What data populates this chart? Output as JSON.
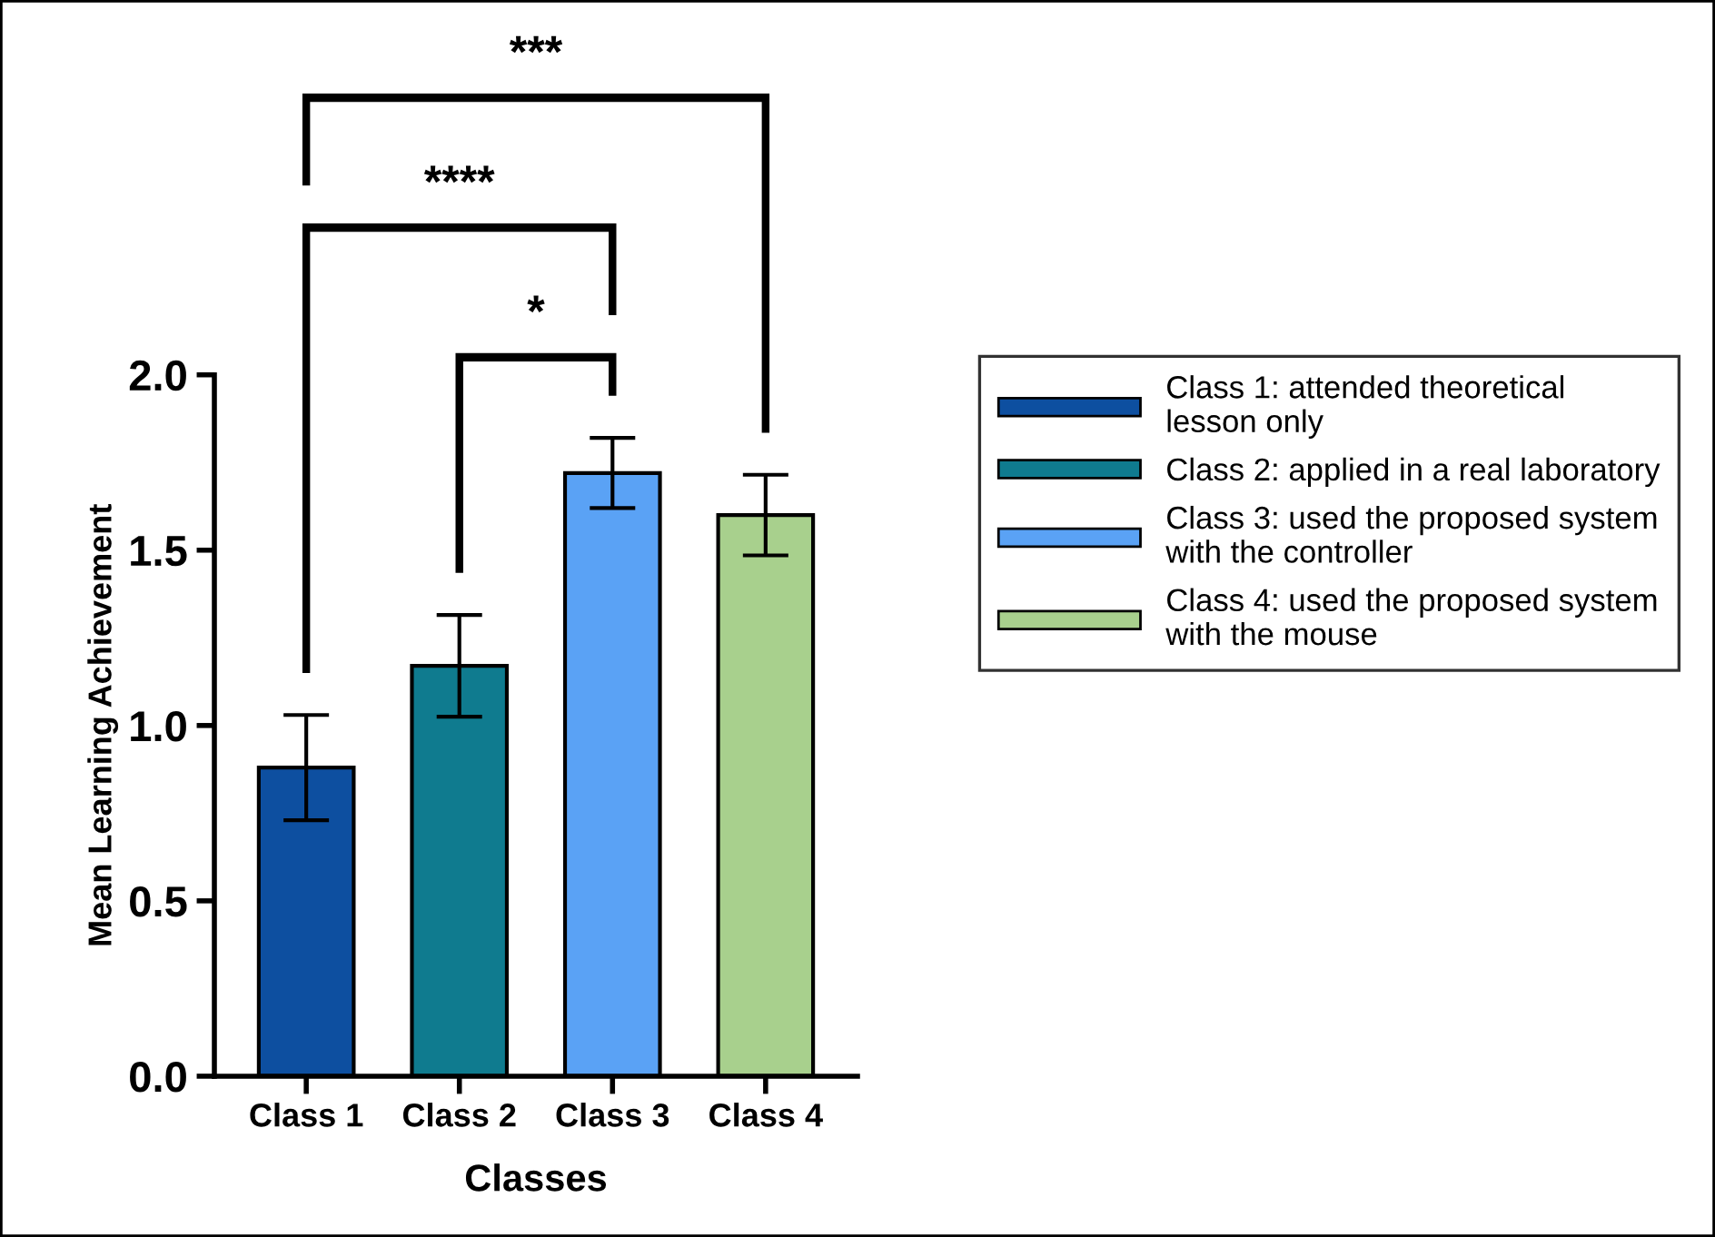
{
  "chart_data": {
    "type": "bar",
    "xlabel": "Classes",
    "ylabel": "Mean Learning Achievement",
    "categories": [
      "Class 1",
      "Class 2",
      "Class 3",
      "Class 4"
    ],
    "series": [
      {
        "name": "Class 1: attended theoretical\nlesson only",
        "color": "#0d4fa0",
        "values": [
          0.88,
          null,
          null,
          null
        ],
        "errors": [
          0.15,
          null,
          null,
          null
        ]
      },
      {
        "name": "Class 2: applied in a real laboratory",
        "color": "#0f7b8f",
        "values": [
          null,
          1.17,
          null,
          null
        ],
        "errors": [
          null,
          0.145,
          null,
          null
        ]
      },
      {
        "name": "Class 3: used the proposed system\nwith the controller",
        "color": "#5aa2f5",
        "values": [
          null,
          null,
          1.72,
          null
        ],
        "errors": [
          null,
          null,
          0.1,
          null
        ]
      },
      {
        "name": "Class 4: used the proposed system\nwith the mouse",
        "color": "#a8d08d",
        "values": [
          null,
          null,
          null,
          1.6
        ],
        "errors": [
          null,
          null,
          null,
          0.115
        ]
      }
    ],
    "ylim": [
      0,
      2.0
    ],
    "yticks": [
      {
        "value": 0,
        "label": "0.0"
      },
      {
        "value": 0.5,
        "label": "0.5"
      },
      {
        "value": 1.0,
        "label": "1.0"
      },
      {
        "value": 1.5,
        "label": "1.5"
      },
      {
        "value": 2.0,
        "label": "2.0"
      }
    ],
    "annotations": [
      "***",
      "****",
      "*"
    ],
    "grid": false,
    "legend": "right"
  }
}
